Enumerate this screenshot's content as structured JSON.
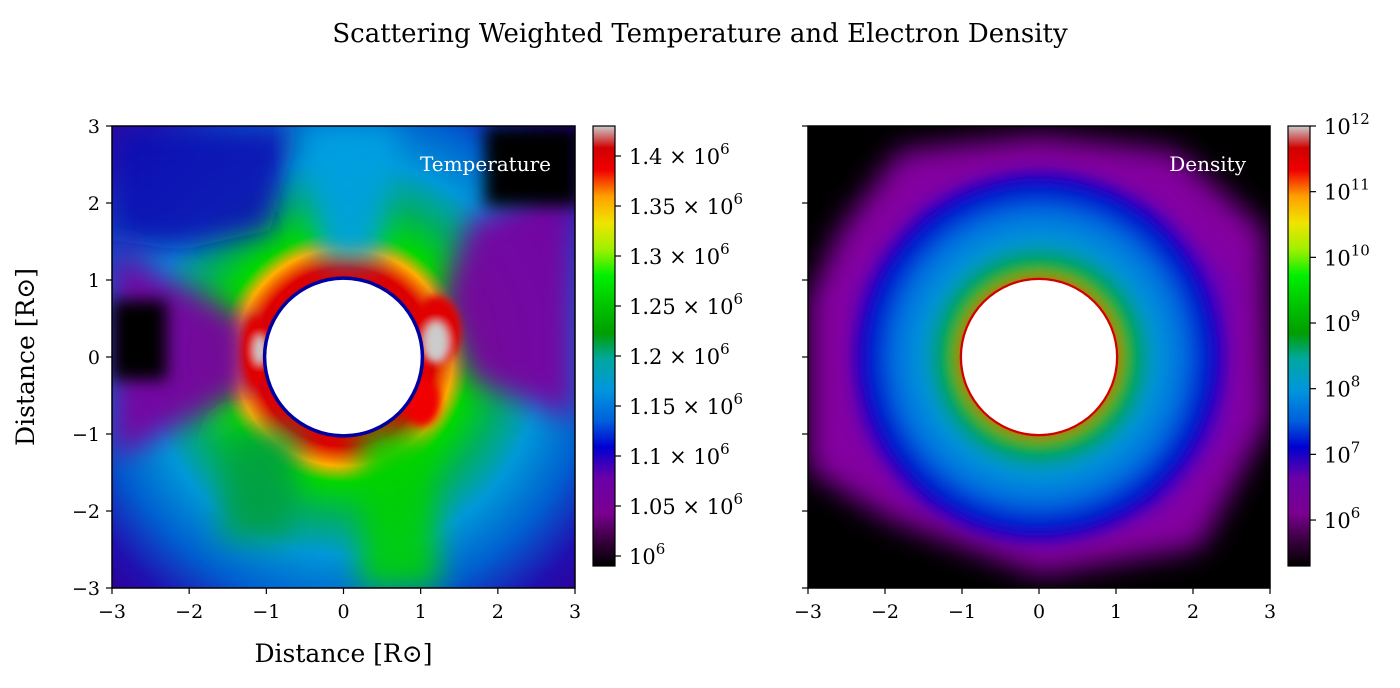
{
  "figure": {
    "title": "Scattering Weighted Temperature and Electron Density"
  },
  "chart_data": [
    {
      "type": "heatmap",
      "panel": "left",
      "label": "Temperature",
      "xlabel": "Distance [R⊙]",
      "ylabel": "Distance [R⊙]",
      "xlim": [
        -3,
        3
      ],
      "ylim": [
        -3,
        3
      ],
      "x_ticks": [
        -3,
        -2,
        -1,
        0,
        1,
        2,
        3
      ],
      "y_ticks": [
        -3,
        -2,
        -1,
        0,
        1,
        2,
        3
      ],
      "x_tick_labels": [
        "−3",
        "−2",
        "−1",
        "0",
        "1",
        "2",
        "3"
      ],
      "y_tick_labels": [
        "−3",
        "−2",
        "−1",
        "0",
        "1",
        "2",
        "3"
      ],
      "occulter_radius": 1,
      "colormap": "nipy_spectral",
      "colorbar": {
        "scale": "linear",
        "range": [
          990000,
          1430000
        ],
        "ticks": [
          {
            "value": 1000000,
            "mant": "10",
            "exp": "6"
          },
          {
            "value": 1050000,
            "mant": "1.05 × 10",
            "exp": "6"
          },
          {
            "value": 1100000,
            "mant": "1.1 × 10",
            "exp": "6"
          },
          {
            "value": 1150000,
            "mant": "1.15 × 10",
            "exp": "6"
          },
          {
            "value": 1200000,
            "mant": "1.2 × 10",
            "exp": "6"
          },
          {
            "value": 1250000,
            "mant": "1.25 × 10",
            "exp": "6"
          },
          {
            "value": 1300000,
            "mant": "1.3 × 10",
            "exp": "6"
          },
          {
            "value": 1350000,
            "mant": "1.35 × 10",
            "exp": "6"
          },
          {
            "value": 1400000,
            "mant": "1.4 × 10",
            "exp": "6"
          }
        ]
      }
    },
    {
      "type": "heatmap",
      "panel": "right",
      "label": "Density",
      "xlabel": "",
      "ylabel": "",
      "xlim": [
        -3,
        3
      ],
      "ylim": [
        -3,
        3
      ],
      "x_ticks": [
        -3,
        -2,
        -1,
        0,
        1,
        2,
        3
      ],
      "y_ticks": [
        -3,
        -2,
        -1,
        0,
        1,
        2,
        3
      ],
      "x_tick_labels": [
        "−3",
        "−2",
        "−1",
        "0",
        "1",
        "2",
        "3"
      ],
      "occulter_radius": 1,
      "colormap": "nipy_spectral",
      "colorbar": {
        "scale": "log",
        "range_log10": [
          5.3,
          12
        ],
        "ticks": [
          {
            "value_log10": 6,
            "mant": "10",
            "exp": "6"
          },
          {
            "value_log10": 7,
            "mant": "10",
            "exp": "7"
          },
          {
            "value_log10": 8,
            "mant": "10",
            "exp": "8"
          },
          {
            "value_log10": 9,
            "mant": "10",
            "exp": "9"
          },
          {
            "value_log10": 10,
            "mant": "10",
            "exp": "10"
          },
          {
            "value_log10": 11,
            "mant": "10",
            "exp": "11"
          },
          {
            "value_log10": 12,
            "mant": "10",
            "exp": "12"
          }
        ]
      }
    }
  ]
}
